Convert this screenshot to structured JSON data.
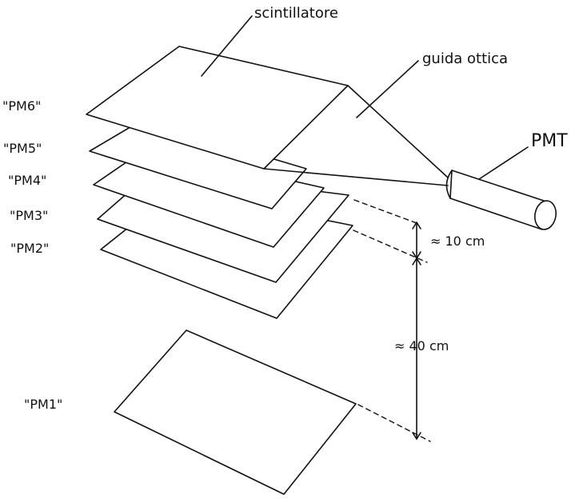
{
  "labels": {
    "scintillator": "scintillatore",
    "light_guide": "guida ottica",
    "pmt": "PMT",
    "pm6": "\"PM6\"",
    "pm5": "\"PM5\"",
    "pm4": "\"PM4\"",
    "pm3": "\"PM3\"",
    "pm2": "\"PM2\"",
    "pm1": "\"PM1\""
  },
  "dimensions": {
    "small_gap": "≈ 10 cm",
    "large_gap": "≈ 40 cm"
  },
  "colors": {
    "ink": "#111111",
    "paper": "#ffffff"
  }
}
